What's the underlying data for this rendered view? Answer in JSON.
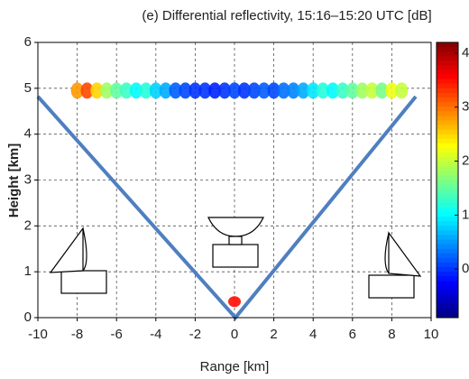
{
  "chart_data": {
    "type": "scatter",
    "title": "(e) Differential reflectivity, 15:16–15:20 UTC [dB]",
    "xlabel": "Range [km]",
    "ylabel": "Height [km]",
    "xlim": [
      -10,
      10
    ],
    "xticks": [
      -10,
      -8,
      -6,
      -4,
      -2,
      0,
      2,
      4,
      6,
      8,
      10
    ],
    "ylim": [
      0,
      6
    ],
    "yticks": [
      0,
      1,
      2,
      3,
      4,
      5,
      6
    ],
    "grid": true,
    "colormap": "jet",
    "colorbar": {
      "clim": [
        -0.9,
        4.2
      ],
      "ticks": [
        0,
        1,
        2,
        3,
        4
      ]
    },
    "x": [
      -8,
      -7.5,
      -7,
      -6.5,
      -6,
      -5.5,
      -5,
      -4.5,
      -4,
      -3.5,
      -3,
      -2.5,
      -2,
      -1.5,
      -1,
      -0.5,
      0,
      0.5,
      1,
      1.5,
      2,
      2.5,
      3,
      3.5,
      4,
      4.5,
      5,
      5.5,
      6,
      6.5,
      7,
      7.5,
      8,
      8.5,
      0
    ],
    "y": [
      4.95,
      4.95,
      4.95,
      4.95,
      4.95,
      4.95,
      4.95,
      4.95,
      4.95,
      4.95,
      4.95,
      4.95,
      4.95,
      4.95,
      4.95,
      4.95,
      4.95,
      4.95,
      4.95,
      4.95,
      4.95,
      4.95,
      4.95,
      4.95,
      4.95,
      4.95,
      4.95,
      4.95,
      4.95,
      4.95,
      4.95,
      4.95,
      4.95,
      4.95,
      0.35
    ],
    "values": [
      2.8,
      3.2,
      2.5,
      1.8,
      1.5,
      1.3,
      1.0,
      1.2,
      0.8,
      0.6,
      0.2,
      0.1,
      0.0,
      0.0,
      -0.1,
      0.0,
      0.1,
      0.0,
      0.1,
      0.2,
      0.1,
      0.3,
      0.4,
      0.6,
      0.9,
      1.2,
      1.0,
      1.3,
      1.5,
      1.8,
      2.0,
      1.6,
      2.2,
      2.0,
      3.5
    ]
  }
}
